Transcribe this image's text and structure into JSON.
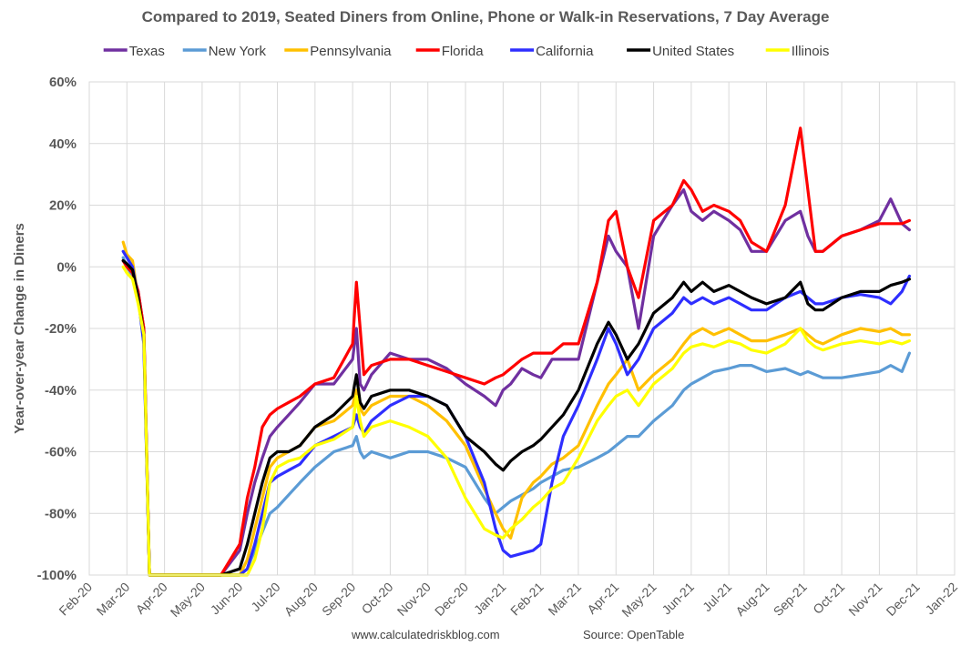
{
  "chart_data": {
    "type": "line",
    "title": "Compared to 2019, Seated Diners from Online, Phone or Walk-in Reservations, 7 Day Average",
    "ylabel": "Year-over-year Change in Diners",
    "xlabel": "",
    "ylim": [
      -100,
      60
    ],
    "y_ticks": [
      "60%",
      "40%",
      "20%",
      "0%",
      "-20%",
      "-40%",
      "-60%",
      "-80%",
      "-100%"
    ],
    "x_ticks": [
      "Feb-20",
      "Mar-20",
      "Apr-20",
      "May-20",
      "Jun-20",
      "Jul-20",
      "Aug-20",
      "Sep-20",
      "Oct-20",
      "Nov-20",
      "Dec-20",
      "Jan-21",
      "Feb-21",
      "Mar-21",
      "Apr-21",
      "May-21",
      "Jun-21",
      "Jul-21",
      "Aug-21",
      "Sep-21",
      "Oct-21",
      "Nov-21",
      "Dec-21",
      "Jan-22"
    ],
    "grid": true,
    "legend_position": "top",
    "x_months": [
      0.9,
      1.0,
      1.15,
      1.3,
      1.45,
      1.6,
      1.8,
      2.0,
      2.5,
      3.0,
      3.5,
      4.0,
      4.2,
      4.4,
      4.6,
      4.8,
      5.0,
      5.3,
      5.6,
      6.0,
      6.5,
      7.0,
      7.1,
      7.2,
      7.3,
      7.5,
      8.0,
      8.5,
      9.0,
      9.5,
      10.0,
      10.5,
      10.8,
      11.0,
      11.2,
      11.5,
      11.8,
      12.0,
      12.3,
      12.6,
      13.0,
      13.5,
      13.8,
      14.0,
      14.3,
      14.6,
      15.0,
      15.5,
      15.8,
      16.0,
      16.3,
      16.6,
      17.0,
      17.3,
      17.6,
      18.0,
      18.5,
      18.9,
      19.1,
      19.3,
      19.5,
      20.0,
      20.5,
      21.0,
      21.3,
      21.6,
      21.8
    ],
    "series": [
      {
        "name": "Texas",
        "color": "#7030A0",
        "values": [
          2,
          0,
          -2,
          -8,
          -20,
          -100,
          -100,
          -100,
          -100,
          -100,
          -100,
          -92,
          -80,
          -70,
          -62,
          -55,
          -52,
          -48,
          -44,
          -38,
          -38,
          -30,
          -20,
          -38,
          -40,
          -35,
          -28,
          -30,
          -30,
          -33,
          -38,
          -42,
          -45,
          -40,
          -38,
          -33,
          -35,
          -36,
          -30,
          -30,
          -30,
          -5,
          10,
          5,
          0,
          -20,
          10,
          20,
          25,
          18,
          15,
          18,
          15,
          12,
          5,
          5,
          15,
          18,
          10,
          5,
          5,
          10,
          12,
          15,
          22,
          14,
          12
        ]
      },
      {
        "name": "New York",
        "color": "#5B9BD5",
        "values": [
          3,
          0,
          -3,
          -10,
          -25,
          -100,
          -100,
          -100,
          -100,
          -100,
          -100,
          -100,
          -98,
          -92,
          -86,
          -80,
          -78,
          -74,
          -70,
          -65,
          -60,
          -58,
          -55,
          -60,
          -62,
          -60,
          -62,
          -60,
          -60,
          -62,
          -65,
          -75,
          -80,
          -78,
          -76,
          -74,
          -72,
          -70,
          -68,
          -66,
          -65,
          -62,
          -60,
          -58,
          -55,
          -55,
          -50,
          -45,
          -40,
          -38,
          -36,
          -34,
          -33,
          -32,
          -32,
          -34,
          -33,
          -35,
          -34,
          -35,
          -36,
          -36,
          -35,
          -34,
          -32,
          -34,
          -28
        ]
      },
      {
        "name": "Pennsylvania",
        "color": "#FFC000",
        "values": [
          8,
          4,
          2,
          -10,
          -20,
          -100,
          -100,
          -100,
          -100,
          -100,
          -100,
          -100,
          -95,
          -85,
          -75,
          -65,
          -62,
          -60,
          -58,
          -52,
          -50,
          -45,
          -40,
          -46,
          -48,
          -45,
          -42,
          -42,
          -45,
          -50,
          -58,
          -72,
          -80,
          -85,
          -88,
          -75,
          -70,
          -68,
          -64,
          -62,
          -58,
          -45,
          -38,
          -35,
          -30,
          -40,
          -35,
          -30,
          -25,
          -22,
          -20,
          -22,
          -20,
          -22,
          -24,
          -24,
          -22,
          -20,
          -22,
          -24,
          -25,
          -22,
          -20,
          -21,
          -20,
          -22,
          -22
        ]
      },
      {
        "name": "Florida",
        "color": "#FF0000",
        "values": [
          2,
          0,
          -2,
          -8,
          -20,
          -100,
          -100,
          -100,
          -100,
          -100,
          -100,
          -90,
          -75,
          -65,
          -52,
          -48,
          -46,
          -44,
          -42,
          -38,
          -36,
          -25,
          -5,
          -20,
          -35,
          -32,
          -30,
          -30,
          -32,
          -34,
          -36,
          -38,
          -36,
          -35,
          -33,
          -30,
          -28,
          -28,
          -28,
          -25,
          -25,
          -5,
          15,
          18,
          0,
          -10,
          15,
          20,
          28,
          25,
          18,
          20,
          18,
          15,
          8,
          5,
          20,
          45,
          25,
          5,
          5,
          10,
          12,
          14,
          14,
          14,
          15
        ]
      },
      {
        "name": "California",
        "color": "#2E2EFF",
        "values": [
          5,
          3,
          0,
          -10,
          -25,
          -100,
          -100,
          -100,
          -100,
          -100,
          -100,
          -100,
          -98,
          -90,
          -80,
          -70,
          -68,
          -66,
          -64,
          -58,
          -55,
          -52,
          -48,
          -52,
          -54,
          -50,
          -45,
          -42,
          -42,
          -45,
          -55,
          -70,
          -85,
          -92,
          -94,
          -93,
          -92,
          -90,
          -70,
          -55,
          -45,
          -30,
          -20,
          -25,
          -35,
          -30,
          -20,
          -15,
          -10,
          -12,
          -10,
          -12,
          -10,
          -12,
          -14,
          -14,
          -10,
          -8,
          -10,
          -12,
          -12,
          -10,
          -9,
          -10,
          -12,
          -8,
          -3
        ]
      },
      {
        "name": "United States",
        "color": "#000000",
        "values": [
          2,
          1,
          -1,
          -10,
          -22,
          -100,
          -100,
          -100,
          -100,
          -100,
          -100,
          -98,
          -90,
          -80,
          -70,
          -62,
          -60,
          -60,
          -58,
          -52,
          -48,
          -42,
          -35,
          -44,
          -46,
          -42,
          -40,
          -40,
          -42,
          -45,
          -55,
          -60,
          -64,
          -66,
          -63,
          -60,
          -58,
          -56,
          -52,
          -48,
          -40,
          -25,
          -18,
          -22,
          -30,
          -25,
          -15,
          -10,
          -5,
          -8,
          -5,
          -8,
          -6,
          -8,
          -10,
          -12,
          -10,
          -5,
          -12,
          -14,
          -14,
          -10,
          -8,
          -8,
          -6,
          -5,
          -4
        ]
      },
      {
        "name": "Illinois",
        "color": "#FFFF00",
        "values": [
          0,
          -2,
          -4,
          -12,
          -22,
          -100,
          -100,
          -100,
          -100,
          -100,
          -100,
          -100,
          -100,
          -95,
          -85,
          -70,
          -65,
          -63,
          -62,
          -58,
          -56,
          -52,
          -42,
          -50,
          -55,
          -52,
          -50,
          -52,
          -55,
          -62,
          -75,
          -85,
          -87,
          -88,
          -85,
          -82,
          -78,
          -76,
          -72,
          -70,
          -62,
          -50,
          -45,
          -42,
          -40,
          -45,
          -38,
          -33,
          -28,
          -26,
          -25,
          -26,
          -24,
          -25,
          -27,
          -28,
          -25,
          -20,
          -24,
          -26,
          -27,
          -25,
          -24,
          -25,
          -24,
          -25,
          -24
        ]
      }
    ],
    "footer_left": "www.calculatedriskblog.com",
    "footer_right": "Source: OpenTable"
  }
}
